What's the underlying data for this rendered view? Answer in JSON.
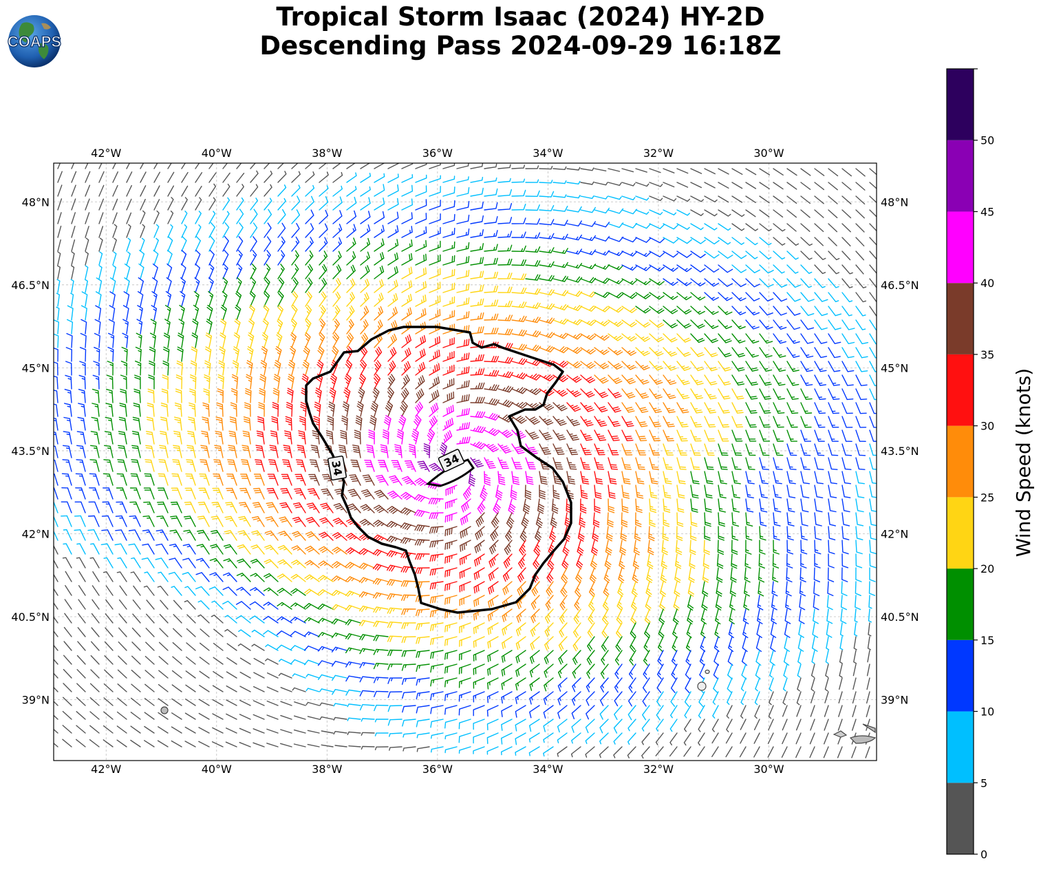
{
  "header": {
    "title_line1": "Tropical Storm Isaac (2024) HY-2D",
    "title_line2": "Descending Pass 2024-09-29 16:18Z",
    "logo_text": "COAPS"
  },
  "map": {
    "lon_range": [
      -42.95,
      -28.05
    ],
    "lat_range": [
      37.9,
      48.7
    ],
    "lon_ticks": [
      "42°W",
      "40°W",
      "38°W",
      "36°W",
      "34°W",
      "32°W",
      "30°W"
    ],
    "lon_tick_values": [
      -42,
      -40,
      -38,
      -36,
      -34,
      -32,
      -30
    ],
    "lat_ticks": [
      "48°N",
      "46.5°N",
      "45°N",
      "43.5°N",
      "42°N",
      "40.5°N",
      "39°N"
    ],
    "lat_tick_values": [
      48,
      46.5,
      45,
      43.5,
      42,
      40.5,
      39
    ],
    "gridlines": true,
    "contour_label_1": "34",
    "contour_label_2": "34",
    "storm_center": {
      "lon": -35.7,
      "lat": 43.25
    },
    "wind_field": "cyclonic barbs, speeds increasing toward center"
  },
  "colorbar": {
    "label": "Wind Speed (knots)",
    "tick_labels": [
      "0",
      "5",
      "10",
      "15",
      "20",
      "25",
      "30",
      "35",
      "40",
      "45",
      "50"
    ],
    "bins": [
      {
        "min": 0,
        "max": 5,
        "color": "#555555"
      },
      {
        "min": 5,
        "max": 10,
        "color": "#00bfff"
      },
      {
        "min": 10,
        "max": 15,
        "color": "#0038ff"
      },
      {
        "min": 15,
        "max": 20,
        "color": "#008f00"
      },
      {
        "min": 20,
        "max": 25,
        "color": "#ffd514"
      },
      {
        "min": 25,
        "max": 30,
        "color": "#ff8c0a"
      },
      {
        "min": 30,
        "max": 35,
        "color": "#ff1010"
      },
      {
        "min": 35,
        "max": 40,
        "color": "#7a3b2a"
      },
      {
        "min": 40,
        "max": 45,
        "color": "#ff00ff"
      },
      {
        "min": 45,
        "max": 50,
        "color": "#8a00b4"
      },
      {
        "min": 50,
        "max": 55,
        "color": "#2d005e"
      }
    ]
  }
}
